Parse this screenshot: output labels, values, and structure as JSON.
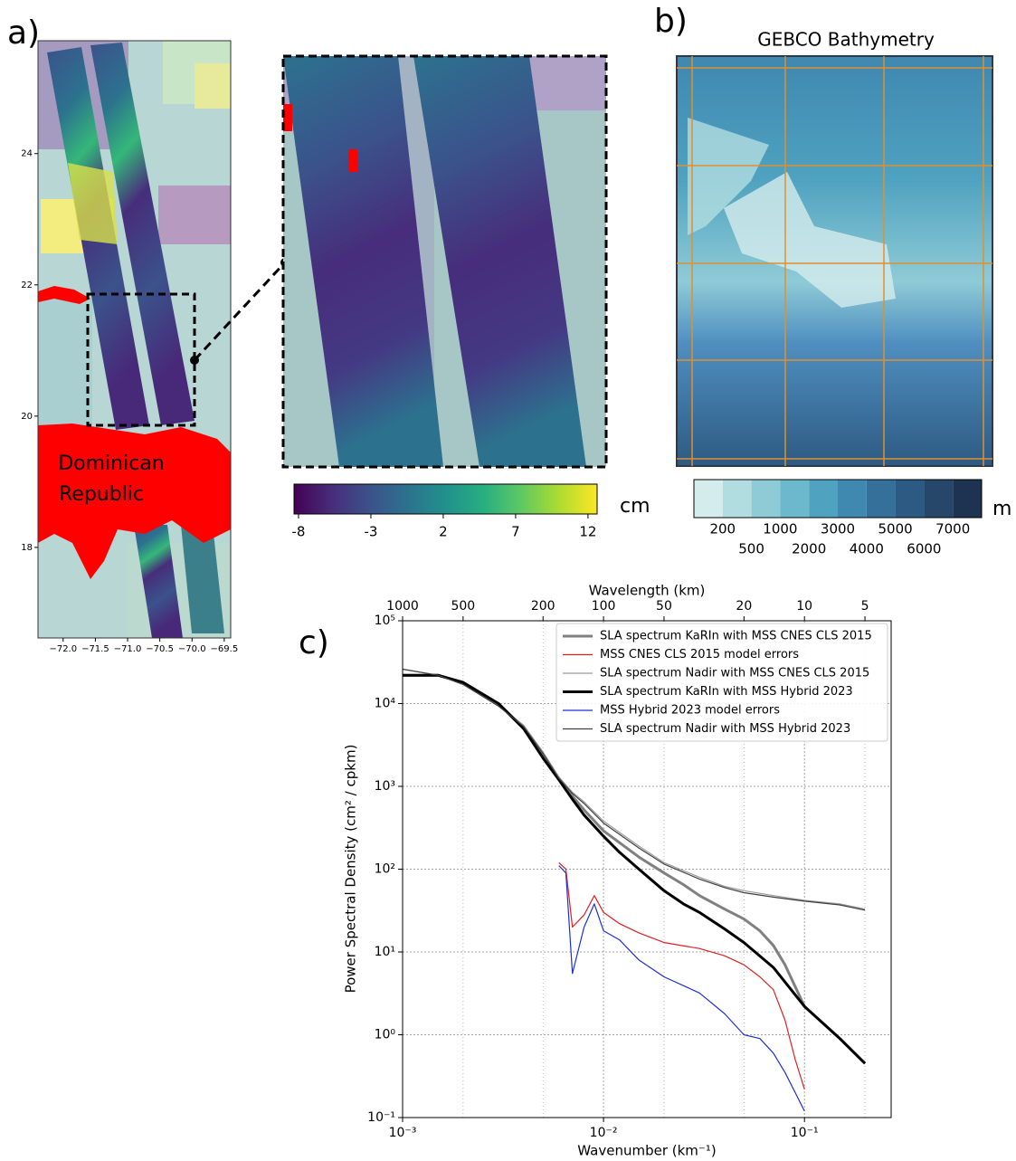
{
  "panel_a": {
    "label": "a)",
    "map": {
      "ylim": [
        16.62,
        25.72
      ],
      "yticks": [
        18,
        20,
        22,
        24
      ],
      "xlim": [
        -72.39,
        -69.4
      ],
      "xticks": [
        {
          "value": -72,
          "label": "−72.0"
        },
        {
          "value": -71.5,
          "label": "−71.5"
        },
        {
          "value": -71,
          "label": "−71.0"
        },
        {
          "value": -70.5,
          "label": "−70.5"
        },
        {
          "value": -70,
          "label": "−70.0"
        },
        {
          "value": -69.5,
          "label": "−69.5"
        }
      ],
      "place_label": [
        "Dominican",
        "Republic"
      ]
    },
    "colorbar": {
      "lim": [
        -8.31,
        12.63
      ],
      "ticks": [
        -8,
        -3,
        2,
        7,
        12
      ],
      "unit": "cm",
      "colors": [
        "#440154",
        "#472d7b",
        "#3b528b",
        "#2c728e",
        "#21918c",
        "#28ae80",
        "#5ec962",
        "#addc30",
        "#fde725"
      ]
    }
  },
  "panel_b": {
    "label": "b)",
    "title": "GEBCO Bathymetry",
    "colorbar": {
      "ticks": [
        200,
        500,
        1000,
        2000,
        3000,
        4000,
        5000,
        6000,
        7000
      ],
      "unit": "m",
      "colors": [
        "#d4ecec",
        "#b2dde0",
        "#8fcbd6",
        "#6cb8cc",
        "#4fa2c0",
        "#3f88b0",
        "#35709a",
        "#2d5a82",
        "#26476a",
        "#1e3352"
      ]
    }
  },
  "chart_data": {
    "type": "line",
    "panel_label": "c)",
    "xlabel": "Wavenumber (km⁻¹)",
    "ylabel": "Power Spectral Density (cm² / cpkm)",
    "x2label": "Wavelength (km)",
    "log_x": true,
    "log_y": true,
    "grid": true,
    "legend": "upper right",
    "xlim": [
      0.001,
      0.27
    ],
    "ylim": [
      0.1,
      100000
    ],
    "xticks": [
      {
        "value": 0.001,
        "label": "10⁻³"
      },
      {
        "value": 0.01,
        "label": "10⁻²"
      },
      {
        "value": 0.1,
        "label": "10⁻¹"
      }
    ],
    "yticks": [
      {
        "value": 0.1,
        "label": "10⁻¹"
      },
      {
        "value": 1,
        "label": "10⁰"
      },
      {
        "value": 10,
        "label": "10¹"
      },
      {
        "value": 100,
        "label": "10²"
      },
      {
        "value": 1000,
        "label": "10³"
      },
      {
        "value": 10000,
        "label": "10⁴"
      },
      {
        "value": 100000,
        "label": "10⁵"
      }
    ],
    "x2ticks": [
      1000,
      500,
      200,
      100,
      50,
      20,
      10,
      5
    ],
    "series": [
      {
        "name": "SLA spectrum KaRIn with MSS CNES CLS 2015",
        "color": "#808080",
        "width": 3,
        "x": [
          0.001,
          0.0015,
          0.002,
          0.003,
          0.004,
          0.005,
          0.006,
          0.007,
          0.008,
          0.01,
          0.015,
          0.02,
          0.025,
          0.03,
          0.04,
          0.05,
          0.06,
          0.07,
          0.08,
          0.1,
          0.15,
          0.2
        ],
        "values": [
          22000,
          22000,
          18000,
          10000,
          5000,
          2300,
          1250,
          760,
          520,
          290,
          140,
          90,
          65,
          48,
          33,
          25,
          18,
          12,
          7,
          2.2,
          0.9,
          0.45
        ]
      },
      {
        "name": "MSS CNES CLS 2015 model errors",
        "color": "#e02020",
        "width": 1.2,
        "x": [
          0.006,
          0.0065,
          0.007,
          0.008,
          0.009,
          0.01,
          0.012,
          0.015,
          0.02,
          0.03,
          0.04,
          0.05,
          0.06,
          0.07,
          0.08,
          0.09,
          0.1
        ],
        "values": [
          120,
          100,
          20,
          28,
          48,
          30,
          22,
          17,
          13,
          11,
          9,
          7,
          5,
          3.5,
          1.5,
          0.5,
          0.22
        ]
      },
      {
        "name": "SLA spectrum Nadir with MSS CNES CLS 2015",
        "color": "#9a9a9a",
        "width": 1.2,
        "x": [
          0.001,
          0.0015,
          0.002,
          0.003,
          0.004,
          0.005,
          0.006,
          0.007,
          0.008,
          0.01,
          0.015,
          0.02,
          0.03,
          0.04,
          0.05,
          0.07,
          0.1,
          0.15,
          0.2
        ],
        "values": [
          26000,
          22000,
          17000,
          9500,
          5500,
          2600,
          1300,
          850,
          650,
          380,
          190,
          120,
          80,
          62,
          55,
          48,
          42,
          38,
          33
        ]
      },
      {
        "name": "SLA spectrum KaRIn with MSS Hybrid 2023",
        "color": "#000000",
        "width": 3,
        "x": [
          0.001,
          0.0015,
          0.002,
          0.003,
          0.004,
          0.005,
          0.006,
          0.007,
          0.008,
          0.01,
          0.012,
          0.015,
          0.02,
          0.025,
          0.03,
          0.04,
          0.05,
          0.07,
          0.1,
          0.15,
          0.2
        ],
        "values": [
          22000,
          22000,
          18000,
          10000,
          5000,
          2200,
          1200,
          700,
          450,
          250,
          160,
          100,
          55,
          38,
          30,
          19,
          13,
          6.5,
          2.2,
          0.9,
          0.45
        ]
      },
      {
        "name": "MSS Hybrid 2023 model errors",
        "color": "#1f2fd8",
        "width": 1.2,
        "x": [
          0.006,
          0.0065,
          0.007,
          0.008,
          0.009,
          0.01,
          0.012,
          0.015,
          0.02,
          0.03,
          0.04,
          0.05,
          0.06,
          0.07,
          0.08,
          0.09,
          0.1
        ],
        "values": [
          110,
          90,
          5.5,
          20,
          38,
          18,
          14,
          8,
          5,
          3.2,
          1.8,
          1,
          0.9,
          0.6,
          0.35,
          0.2,
          0.12
        ]
      },
      {
        "name": "SLA spectrum Nadir with MSS Hybrid 2023",
        "color": "#404040",
        "width": 1.2,
        "x": [
          0.001,
          0.0015,
          0.002,
          0.003,
          0.004,
          0.005,
          0.006,
          0.007,
          0.008,
          0.01,
          0.015,
          0.02,
          0.03,
          0.04,
          0.05,
          0.07,
          0.1,
          0.15,
          0.2
        ],
        "values": [
          26000,
          22000,
          17000,
          9300,
          5300,
          2500,
          1250,
          820,
          620,
          360,
          180,
          115,
          76,
          60,
          52,
          46,
          41,
          37,
          32
        ]
      }
    ]
  }
}
